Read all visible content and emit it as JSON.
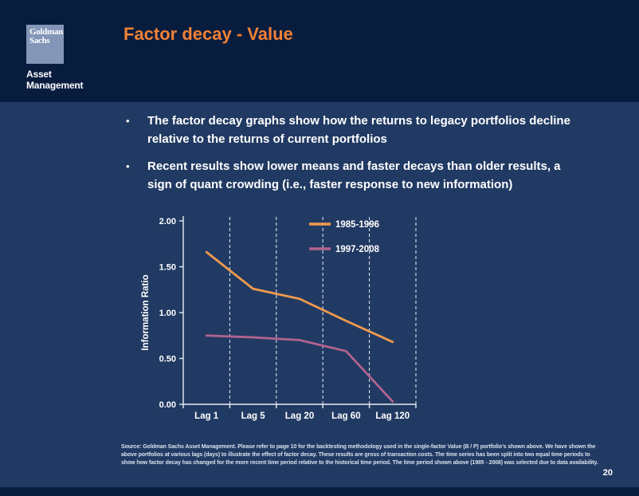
{
  "header": {
    "logo": {
      "line1": "Goldman",
      "line2": "Sachs"
    },
    "brand": {
      "line1": "Asset",
      "line2": "Management"
    },
    "title": "Factor decay - Value"
  },
  "bullet_marker": "•",
  "bullets": [
    "The factor decay graphs show how the returns to legacy portfolios decline relative to the returns of current portfolios",
    "Recent results show lower means and faster decays than older results, a sign of quant crowding (i.e., faster response to new information)"
  ],
  "chart_data": {
    "type": "line",
    "title": "",
    "xlabel": "",
    "ylabel": "Information Ratio",
    "categories": [
      "Lag 1",
      "Lag 5",
      "Lag 20",
      "Lag 60",
      "Lag 120"
    ],
    "series": [
      {
        "name": "1985-1996",
        "color": "#F09A4D",
        "values": [
          1.66,
          1.26,
          1.15,
          0.91,
          0.68
        ]
      },
      {
        "name": "1997-2008",
        "color": "#B2638F",
        "values": [
          0.75,
          0.73,
          0.7,
          0.58,
          0.03
        ]
      }
    ],
    "ylim": [
      0,
      2
    ],
    "yticks": [
      0,
      0.5,
      1,
      1.5,
      2
    ],
    "ytick_labels": [
      "0.00",
      "0.50",
      "1.00",
      "1.50",
      "2.00"
    ],
    "grid": "vertical-dashed-between-categories",
    "legend_position": "top-right-inside"
  },
  "footnote": "Source: Goldman Sachs Asset Management. Please refer to page 10 for the backtesting methodology used in the single-factor Value (B / P) portfolio's shown above. We have shown the above portfolios at various lags (days) to illustrate the effect of factor decay. These results are gross of transaction costs. The time series has been split into two equal time periods to show how factor decay has changed for the more recent time period relative to the historical time period. The time period shown above (1985 - 2008) was selected due to data availability.",
  "page_number": "20",
  "colors": {
    "header_bg": "#081C3E",
    "content_bg": "#213A63",
    "title_accent": "#F08136",
    "logo_bg": "#8396B7",
    "axis": "#E9EDF4",
    "footnote_text": "#D9E1ED",
    "series_1985_1996": "#F09A4D",
    "series_1997_2008": "#B2638F"
  }
}
